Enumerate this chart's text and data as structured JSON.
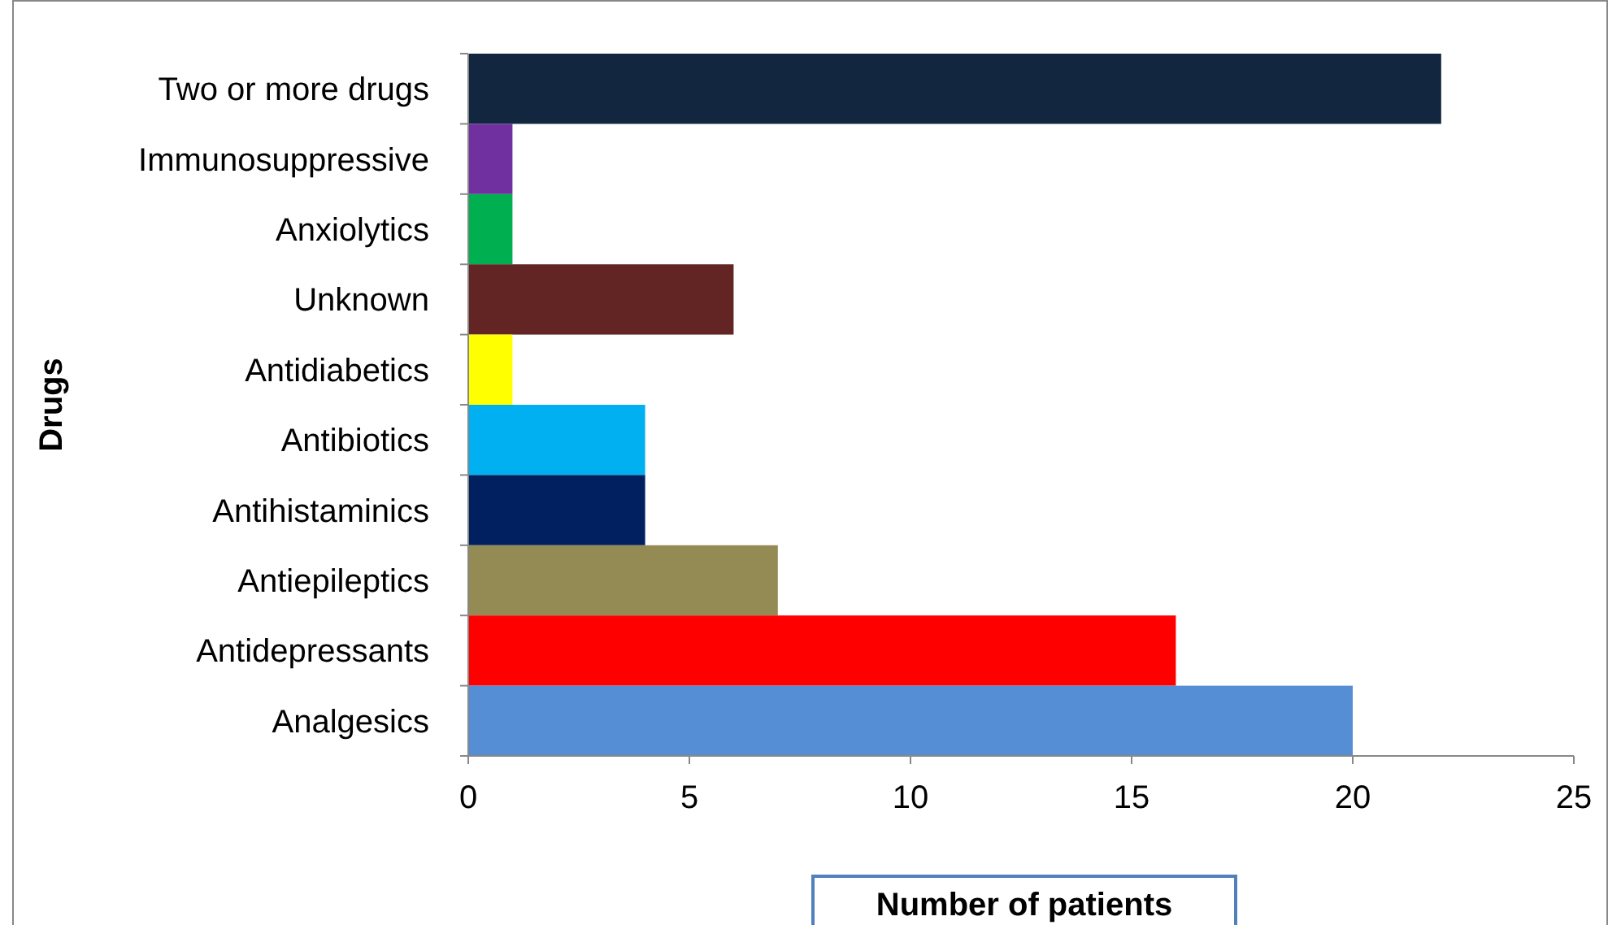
{
  "chart_data": {
    "type": "bar",
    "orientation": "horizontal",
    "xlabel": "Number of patients",
    "ylabel": "Drugs",
    "categories": [
      "Two or more drugs",
      "Immunosuppressive",
      "Anxiolytics",
      "Unknown",
      "Antidiabetics",
      "Antibiotics",
      "Antihistaminics",
      "Antiepileptics",
      "Antidepressants",
      "Analgesics"
    ],
    "values": [
      22,
      1,
      1,
      6,
      1,
      4,
      4,
      7,
      16,
      20
    ],
    "colors": [
      "#13263f",
      "#7030a0",
      "#00b050",
      "#632523",
      "#ffff00",
      "#00b0f0",
      "#002060",
      "#948a54",
      "#ff0000",
      "#558ed5"
    ],
    "xlim": [
      0,
      25
    ],
    "xticks": [
      0,
      5,
      10,
      15,
      20,
      25
    ],
    "grid": false
  }
}
